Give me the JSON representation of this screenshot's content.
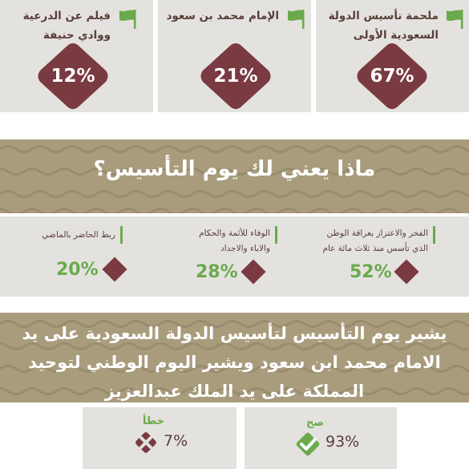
{
  "top_cards": [
    {
      "title": "ملحمة تأسيس الدولة السعودية الأولى",
      "line1": "ملحمة تأسيس الدولة",
      "line2": "السعودية الأولى",
      "value": "67%"
    },
    {
      "title": "الإمام محمد بن سعود",
      "line1": "الإمام محمد بن سعود",
      "line2": "",
      "value": "21%"
    },
    {
      "title": "فيلم عن الدرعية ووادي حنيفة",
      "line1": "فيلم عن الدرعية",
      "line2": "ووادي حنيفة",
      "value": "12%"
    }
  ],
  "question": "ماذا يعني لك يوم التأسيس؟",
  "meanings": [
    {
      "line1": "الفخر والاعتزاز بعراقة الوطن",
      "line2": "الذي تأسس منذ ثلاث مائة عام",
      "value": "52%"
    },
    {
      "line1": "الوفاء للأئمة والحكام",
      "line2": "والاباء والاجداد",
      "value": "28%"
    },
    {
      "line1": "ربط الحاضر بالماضي",
      "line2": "",
      "value": "20%"
    }
  ],
  "statement": {
    "line1": "يشير يوم التأسيس لتأسيس الدولة السعودية على يد",
    "line2": "الامام محمد ابن سعود ويشير اليوم الوطني لتوحيد",
    "line3": "المملكة على يد الملك عبدالعزيز"
  },
  "answers": {
    "correct": {
      "label": "صح",
      "value": "93%"
    },
    "wrong": {
      "label": "خطأ",
      "value": "7%"
    }
  },
  "colors": {
    "maroon": "#7a3a42",
    "green": "#6aaa4d",
    "khaki": "#a99c7d",
    "panel": "#e4e2de",
    "text_brown": "#5a3e3a"
  },
  "chart_data": [
    {
      "type": "bar",
      "categories": [
        "ملحمة تأسيس الدولة السعودية الأولى",
        "الإمام محمد بن سعود",
        "فيلم عن الدرعية ووادي حنيفة"
      ],
      "values": [
        67,
        21,
        12
      ]
    },
    {
      "type": "bar",
      "title": "ماذا يعني لك يوم التأسيس؟",
      "categories": [
        "الفخر والاعتزاز بعراقة الوطن الذي تأسس منذ ثلاث مائة عام",
        "الوفاء للأئمة والحكام والاباء والاجداد",
        "ربط الحاضر بالماضي"
      ],
      "values": [
        52,
        28,
        20
      ]
    },
    {
      "type": "bar",
      "categories": [
        "صح",
        "خطأ"
      ],
      "values": [
        93,
        7
      ]
    }
  ]
}
